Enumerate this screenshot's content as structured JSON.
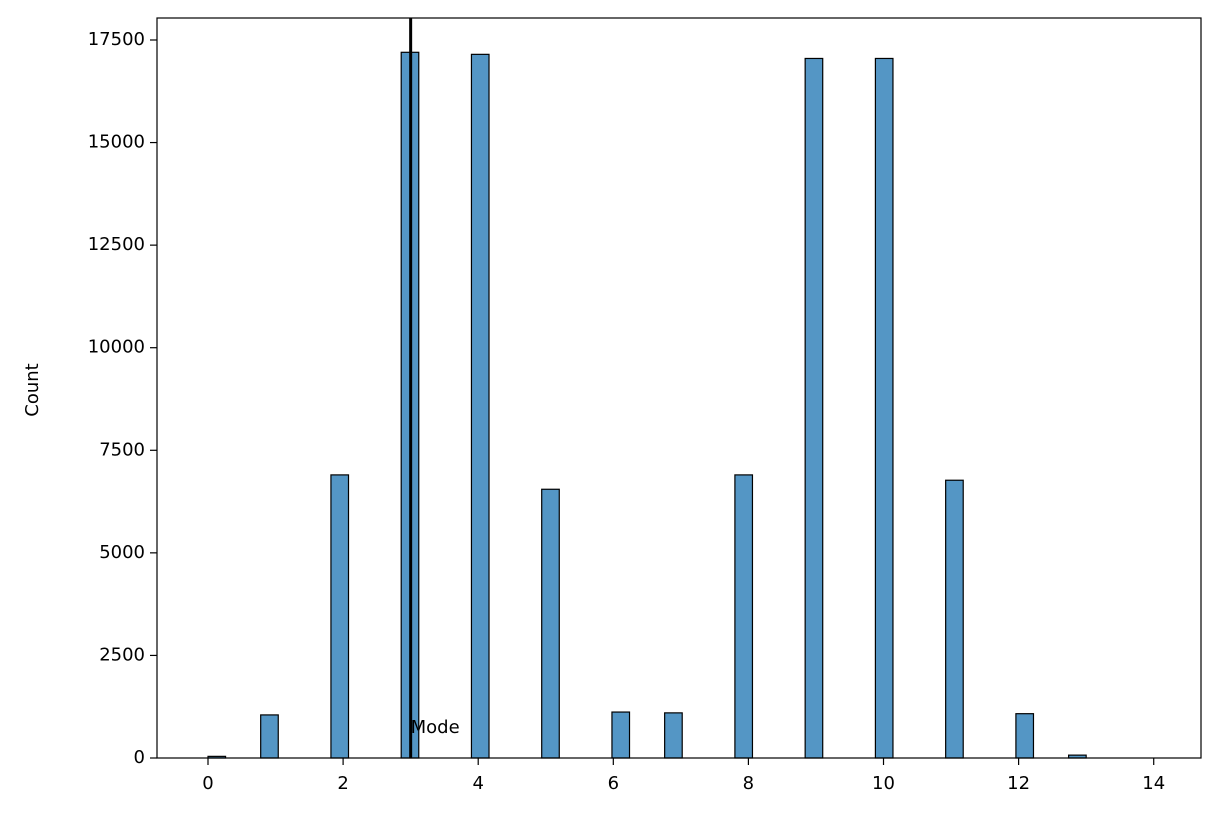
{
  "chart_data": {
    "type": "histogram",
    "ylabel": "Count",
    "bins": [
      0,
      0.26,
      0.52,
      0.78,
      1.04,
      1.3,
      1.56,
      1.82,
      2.08,
      2.34,
      2.6,
      2.86,
      3.12,
      3.38,
      3.64,
      3.9,
      4.16,
      4.42,
      4.68,
      4.94,
      5.2,
      5.46,
      5.72,
      5.98,
      6.24,
      6.5,
      6.76,
      7.02,
      7.28,
      7.54,
      7.8,
      8.06,
      8.32,
      8.58,
      8.84,
      9.1,
      9.36,
      9.62,
      9.88,
      10.14,
      10.4,
      10.66,
      10.92,
      11.18,
      11.44,
      11.7,
      11.96,
      12.22,
      12.48,
      12.74,
      13.0
    ],
    "counts": [
      40,
      0,
      0,
      1050,
      0,
      0,
      0,
      6900,
      0,
      0,
      0,
      17200,
      0,
      0,
      0,
      17150,
      0,
      0,
      0,
      6550,
      0,
      0,
      0,
      1120,
      0,
      0,
      1100,
      0,
      0,
      0,
      6900,
      0,
      0,
      0,
      17050,
      0,
      0,
      0,
      17050,
      0,
      0,
      0,
      6770,
      0,
      0,
      0,
      1080,
      0,
      0,
      70
    ],
    "color": "#5496c5",
    "edgecolor": "#000000",
    "mode_line": {
      "x": 3,
      "color": "#000000"
    },
    "annotation": {
      "text": "Mode",
      "x": 3,
      "y": 730
    },
    "xlim": [
      -0.755,
      14.7
    ],
    "xticks": [
      0,
      2,
      4,
      6,
      8,
      10,
      12,
      14
    ],
    "ylim": [
      0,
      18036
    ],
    "yticks": [
      0,
      2500,
      5000,
      7500,
      10000,
      12500,
      15000,
      17500
    ]
  }
}
